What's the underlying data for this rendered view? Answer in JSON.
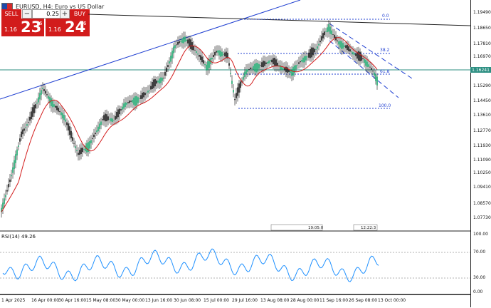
{
  "window": {
    "title": "EURUSD, H4:  Euro vs US Dollar"
  },
  "trade_panel": {
    "sell_label": "SELL",
    "buy_label": "BUY",
    "volume": "0.25",
    "sell_price_small": "1.16",
    "sell_price_big": "23",
    "sell_price_sup": "6",
    "buy_price_small": "1.16",
    "buy_price_big": "24",
    "buy_price_sup": "6"
  },
  "price_axis": {
    "labels": [
      "1.19490",
      "1.18650",
      "1.17810",
      "1.16970",
      "1.16241",
      "1.15290",
      "1.14450",
      "1.13610",
      "1.12770",
      "1.11930",
      "1.11090",
      "1.10250",
      "1.09410",
      "1.08570",
      "1.07730"
    ],
    "current_price": "1.16241"
  },
  "time_axis": {
    "labels": [
      "1 Apr 2025",
      "16 Apr 00:00",
      "30 Apr 16:00",
      "15 May 08:00",
      "30 May 00:00",
      "13 Jun 16:00",
      "30 Jun 08:00",
      "15 Jul 00:00",
      "29 Jul 16:00",
      "13 Aug 08:00",
      "28 Aug 00:00",
      "11 Sep 16:00",
      "26 Sep 08:00",
      "13 Oct 00:00"
    ]
  },
  "fib_levels": {
    "level_0": "0.0",
    "level_382": "38.2",
    "level_618": "61.8",
    "level_100": "100.0"
  },
  "event_markers": {
    "left_time": "19:05:0",
    "right_time": "12:22:3"
  },
  "rsi": {
    "label": "RSI(14) 49.26",
    "axis_labels": [
      "100.00",
      "70.00",
      "30.00",
      "0.00"
    ]
  },
  "colors": {
    "sell": "#d21b1b",
    "buy": "#d21b1b",
    "price_line": "#2c8f82",
    "ma": "#d21b1b",
    "rsi": "#1e90ff",
    "trend": "#1f3fd1"
  }
}
